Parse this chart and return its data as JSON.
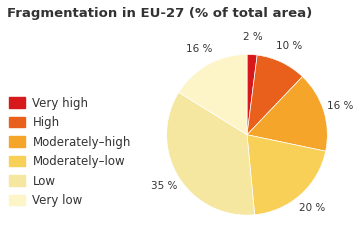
{
  "title": "Fragmentation in EU-27 (% of total area)",
  "slices": [
    2,
    10,
    16,
    20,
    35,
    16
  ],
  "labels": [
    "Very high",
    "High",
    "Moderately–high",
    "Moderately–low",
    "Low",
    "Very low"
  ],
  "colors": [
    "#d7191c",
    "#e8601c",
    "#f4a52a",
    "#f9d057",
    "#f5e6a0",
    "#fdf5c8"
  ],
  "pct_labels": [
    "2 %",
    "10 %",
    "16 %",
    "20 %",
    "35 %",
    "16 %"
  ],
  "startangle": 90,
  "background_color": "#ffffff",
  "title_fontsize": 9.5,
  "legend_fontsize": 8.5
}
